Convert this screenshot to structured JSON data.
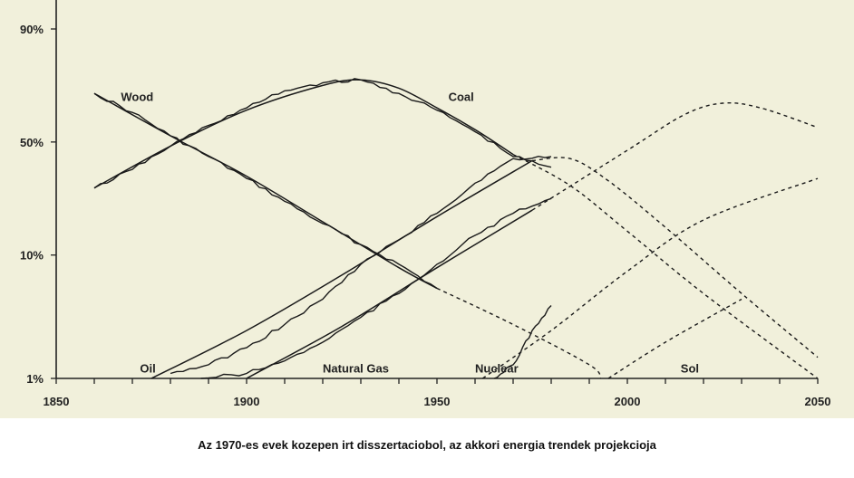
{
  "caption": "Az 1970-es evek kozepen irt disszertaciobol, az akkori energia trendek projekcioja",
  "chart_data": {
    "type": "line",
    "title": "",
    "xlabel": "",
    "ylabel": "",
    "y_scale": "logit",
    "xlim": [
      1850,
      2050
    ],
    "x_ticks": [
      1850,
      1900,
      1950,
      2000,
      2050
    ],
    "y_ticks": [
      {
        "label": "1%",
        "value": 0.01
      },
      {
        "label": "10%",
        "value": 0.1
      },
      {
        "label": "50%",
        "value": 0.5
      },
      {
        "label": "90%",
        "value": 0.9
      }
    ],
    "series": [
      {
        "name": "Wood",
        "historical": [
          [
            1860,
            0.72
          ],
          [
            1870,
            0.64
          ],
          [
            1880,
            0.53
          ],
          [
            1890,
            0.43
          ],
          [
            1900,
            0.33
          ],
          [
            1910,
            0.24
          ],
          [
            1920,
            0.17
          ],
          [
            1930,
            0.12
          ],
          [
            1940,
            0.085
          ],
          [
            1950,
            0.055
          ]
        ],
        "trend": [
          [
            1860,
            0.72
          ],
          [
            1880,
            0.53
          ],
          [
            1900,
            0.34
          ],
          [
            1920,
            0.175
          ],
          [
            1940,
            0.08
          ],
          [
            1950,
            0.055
          ]
        ],
        "projection": [
          [
            1950,
            0.055
          ],
          [
            1970,
            0.028
          ],
          [
            1990,
            0.013
          ],
          [
            1993,
            0.01
          ]
        ]
      },
      {
        "name": "Coal",
        "historical": [
          [
            1860,
            0.29
          ],
          [
            1870,
            0.37
          ],
          [
            1880,
            0.48
          ],
          [
            1890,
            0.58
          ],
          [
            1900,
            0.66
          ],
          [
            1910,
            0.73
          ],
          [
            1920,
            0.76
          ],
          [
            1930,
            0.77
          ],
          [
            1940,
            0.72
          ],
          [
            1950,
            0.65
          ],
          [
            1960,
            0.55
          ],
          [
            1970,
            0.43
          ],
          [
            1980,
            0.38
          ]
        ],
        "trend": [
          [
            1860,
            0.29
          ],
          [
            1880,
            0.48
          ],
          [
            1900,
            0.65
          ],
          [
            1920,
            0.75
          ],
          [
            1930,
            0.77
          ],
          [
            1940,
            0.74
          ],
          [
            1950,
            0.66
          ],
          [
            1960,
            0.56
          ],
          [
            1970,
            0.44
          ]
        ],
        "projection": [
          [
            1970,
            0.44
          ],
          [
            1985,
            0.3
          ],
          [
            2000,
            0.15
          ],
          [
            2020,
            0.05
          ],
          [
            2050,
            0.01
          ]
        ]
      },
      {
        "name": "Oil",
        "historical": [
          [
            1880,
            0.011
          ],
          [
            1890,
            0.013
          ],
          [
            1900,
            0.018
          ],
          [
            1910,
            0.028
          ],
          [
            1920,
            0.045
          ],
          [
            1930,
            0.085
          ],
          [
            1940,
            0.13
          ],
          [
            1950,
            0.2
          ],
          [
            1960,
            0.31
          ],
          [
            1970,
            0.42
          ],
          [
            1980,
            0.43
          ]
        ],
        "trend": [
          [
            1875,
            0.01
          ],
          [
            1900,
            0.025
          ],
          [
            1925,
            0.07
          ],
          [
            1950,
            0.19
          ],
          [
            1975,
            0.41
          ]
        ],
        "projection": [
          [
            1975,
            0.41
          ],
          [
            1985,
            0.42
          ],
          [
            1995,
            0.32
          ],
          [
            2010,
            0.16
          ],
          [
            2030,
            0.05
          ],
          [
            2050,
            0.015
          ]
        ]
      },
      {
        "name": "Natural Gas",
        "historical": [
          [
            1888,
            0.01
          ],
          [
            1900,
            0.011
          ],
          [
            1910,
            0.014
          ],
          [
            1920,
            0.02
          ],
          [
            1930,
            0.032
          ],
          [
            1940,
            0.05
          ],
          [
            1950,
            0.085
          ],
          [
            1960,
            0.14
          ],
          [
            1970,
            0.2
          ],
          [
            1980,
            0.25
          ]
        ],
        "trend": [
          [
            1900,
            0.01
          ],
          [
            1925,
            0.027
          ],
          [
            1950,
            0.08
          ],
          [
            1975,
            0.21
          ]
        ],
        "projection": [
          [
            1975,
            0.21
          ],
          [
            2000,
            0.46
          ],
          [
            2015,
            0.63
          ],
          [
            2025,
            0.68
          ],
          [
            2035,
            0.66
          ],
          [
            2050,
            0.57
          ]
        ]
      },
      {
        "name": "Nuclear",
        "historical": [
          [
            1965,
            0.01
          ],
          [
            1970,
            0.013
          ],
          [
            1975,
            0.025
          ],
          [
            1980,
            0.04
          ]
        ],
        "trend": [],
        "projection": [
          [
            1962,
            0.01
          ],
          [
            1980,
            0.025
          ],
          [
            2000,
            0.075
          ],
          [
            2020,
            0.18
          ],
          [
            2050,
            0.33
          ]
        ]
      },
      {
        "name": "Sol",
        "historical": [],
        "trend": [],
        "projection": [
          [
            1995,
            0.01
          ],
          [
            2010,
            0.02
          ],
          [
            2030,
            0.045
          ]
        ]
      }
    ],
    "labels": [
      {
        "text": "Wood",
        "x": 1867,
        "y": 0.69
      },
      {
        "text": "Coal",
        "x": 1953,
        "y": 0.69
      },
      {
        "text": "Oil",
        "x": 1872,
        "y": 0.0112
      },
      {
        "text": "Natural Gas",
        "x": 1920,
        "y": 0.0112
      },
      {
        "text": "Nuclear",
        "x": 1960,
        "y": 0.0112
      },
      {
        "text": "Sol",
        "x": 2014,
        "y": 0.0112
      }
    ],
    "grid": false,
    "legend": "inline labels"
  }
}
